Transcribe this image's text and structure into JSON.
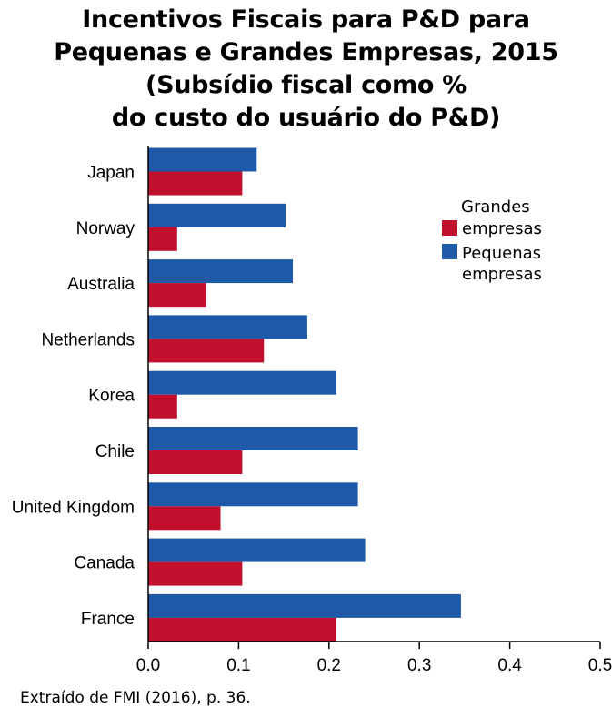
{
  "title_lines": [
    "Incentivos Fiscais para P&D para",
    "Pequenas e Grandes Empresas, 2015",
    "(Subsídio fiscal como %",
    "do custo do usuário do P&D)"
  ],
  "source": "Extraído de FMI (2016), p. 36.",
  "chart_data": {
    "type": "bar",
    "orientation": "horizontal",
    "title": "Incentivos Fiscais para P&D para Pequenas e Grandes Empresas, 2015 (Subsídio fiscal como % do custo do usuário do P&D)",
    "categories": [
      "Japan",
      "Norway",
      "Australia",
      "Netherlands",
      "Korea",
      "Chile",
      "United Kingdom",
      "Canada",
      "France"
    ],
    "series": [
      {
        "name": "Pequenas empresas",
        "color": "#1f5aa8",
        "values": [
          0.12,
          0.152,
          0.16,
          0.176,
          0.208,
          0.232,
          0.232,
          0.24,
          0.346
        ]
      },
      {
        "name": "Grandes empresas",
        "color": "#c0102e",
        "values": [
          0.104,
          0.032,
          0.064,
          0.128,
          0.032,
          0.104,
          0.08,
          0.104,
          0.208
        ]
      }
    ],
    "legend": {
      "title_line1": "Grandes",
      "items": [
        {
          "label_lines": [
            "empresas"
          ],
          "color": "#c0102e"
        },
        {
          "label_lines": [
            "Pequenas",
            "empresas"
          ],
          "color": "#1f5aa8"
        }
      ],
      "placement": "top-right"
    },
    "xlim": [
      0,
      0.5
    ],
    "xticks": [
      "0.0",
      "0.1",
      "0.2",
      "0.3",
      "0.4",
      "0.5"
    ],
    "grid": false
  }
}
